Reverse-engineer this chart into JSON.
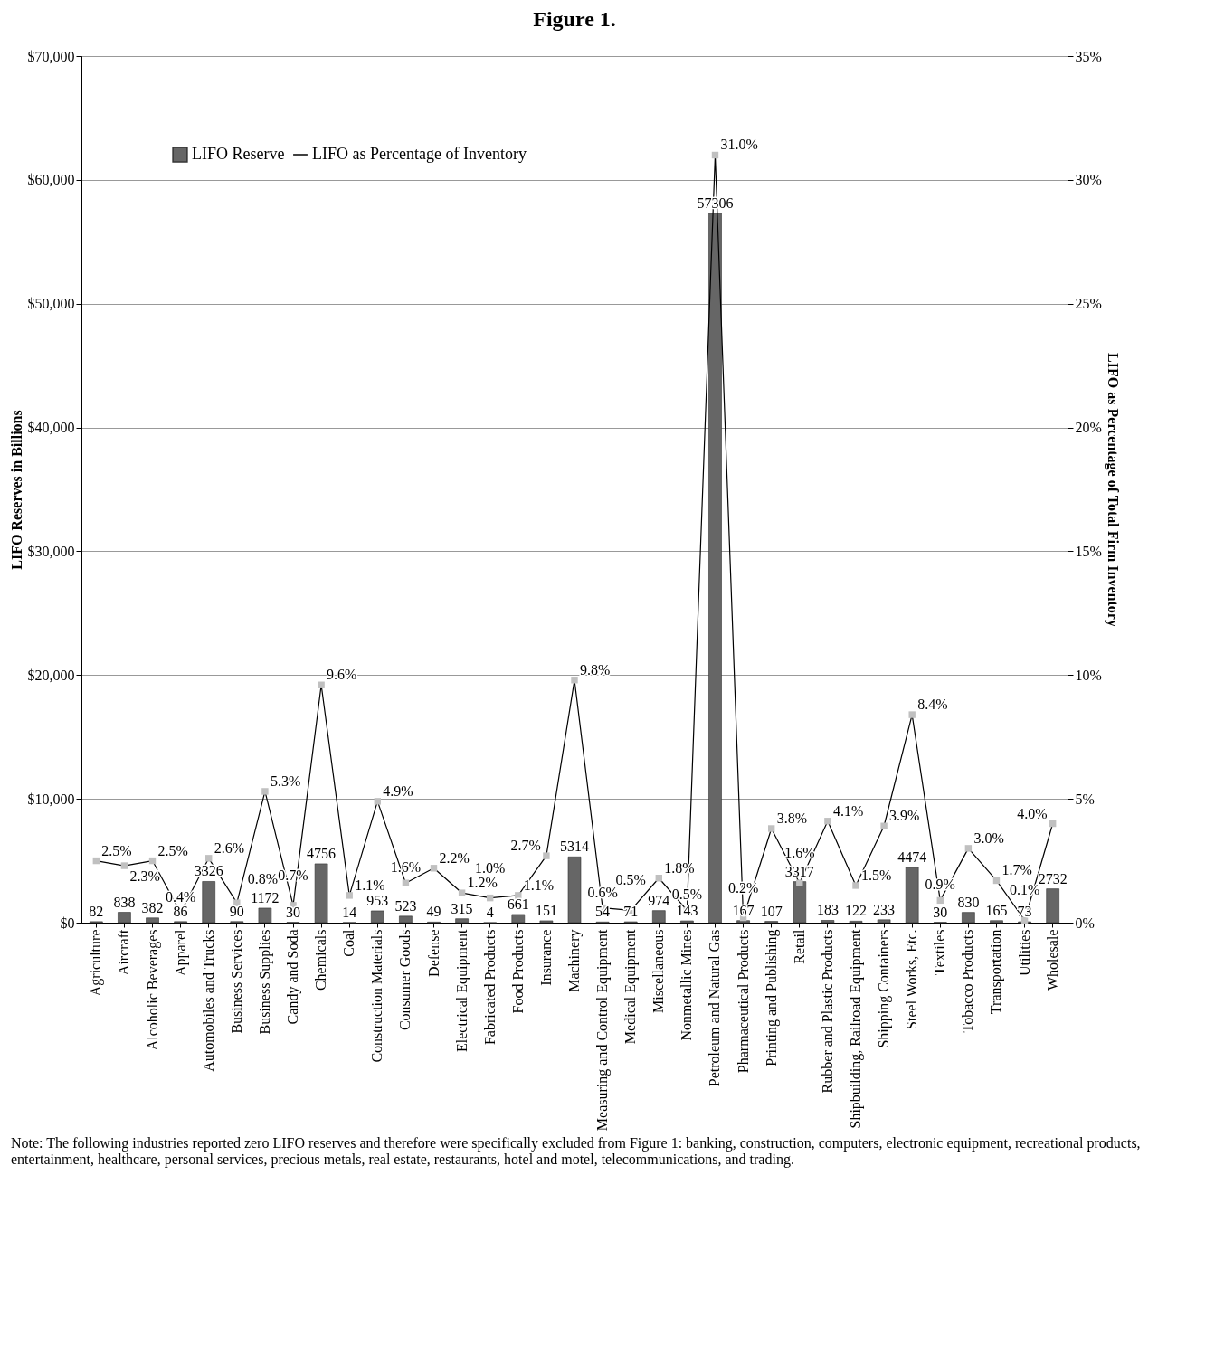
{
  "chart_data": {
    "type": "bar",
    "title": "Figure 1.",
    "ylabel": "LIFO Reserves in Billions",
    "y2label": "LIFO as Percentage of Total Firm Inventory",
    "categories": [
      "Agriculture",
      "Aircraft",
      "Alcoholic Beverages",
      "Apparel",
      "Automobiles and Trucks",
      "Business Services",
      "Business Supplies",
      "Candy and Soda",
      "Chemicals",
      "Coal",
      "Construction Materials",
      "Consumer Goods",
      "Defense",
      "Electrical Equipment",
      "Fabricated Products",
      "Food Products",
      "Insurance",
      "Machinery",
      "Measuring and Control Equipment",
      "Medical Equipment",
      "Miscellaneous",
      "Nonmetallic Mines",
      "Petroleum and Natural Gas",
      "Pharmaceutical Products",
      "Printing and Publishing",
      "Retail",
      "Rubber and Plastic Products",
      "Shipbuilding, Railroad Equipment",
      "Shipping Containers",
      "Steel Works, Etc.",
      "Textiles",
      "Tobacco Products",
      "Transportation",
      "Utilities",
      "Wholesale"
    ],
    "series": [
      {
        "name": "LIFO Reserve",
        "color": "#666666",
        "values": [
          82,
          838,
          382,
          86,
          3326,
          90,
          1172,
          30,
          4756,
          14,
          953,
          523,
          49,
          315,
          4,
          661,
          151,
          5314,
          54,
          71,
          974,
          143,
          57306,
          167,
          107,
          3317,
          183,
          122,
          233,
          4474,
          30,
          830,
          165,
          73,
          2732
        ]
      },
      {
        "name": "LIFO as Percentage of Inventory",
        "type": "line",
        "axis": "y2",
        "color": "#000000",
        "marker": "square",
        "colors": [
          "#c0c0c0",
          "#c0c0c0",
          "#c0c0c0",
          "#c0c0c0",
          "#c0c0c0",
          "#c0c0c0",
          "#c0c0c0",
          "#c0c0c0",
          "#c0c0c0",
          "#c0c0c0",
          "#c0c0c0",
          "#c0c0c0",
          "#c0c0c0",
          "#c0c0c0",
          "#c0c0c0",
          "#c0c0c0",
          "#c0c0c0",
          "#c0c0c0",
          "#c0c0c0",
          "#c0c0c0",
          "#c0c0c0",
          "#c0c0c0",
          "#c0c0c0",
          "#c0c0c0",
          "#c0c0c0",
          "#c0c0c0",
          "#c0c0c0",
          "#c0c0c0",
          "#c0c0c0",
          "#c0c0c0",
          "#c0c0c0",
          "#c0c0c0",
          "#c0c0c0",
          "#c0c0c0",
          "#c0c0c0"
        ],
        "values": [
          2.5,
          2.3,
          2.5,
          0.4,
          2.6,
          0.8,
          5.3,
          0.7,
          9.6,
          1.1,
          4.9,
          1.6,
          2.2,
          1.2,
          1.0,
          1.1,
          2.7,
          9.8,
          0.6,
          0.5,
          1.8,
          0.5,
          31.0,
          0.2,
          3.8,
          1.6,
          4.1,
          1.5,
          3.9,
          8.4,
          0.9,
          3.0,
          1.7,
          0.1,
          4.0
        ],
        "value_labels": [
          "2.5%",
          "2.3%",
          "2.5%",
          "0.4%",
          "2.6%",
          "0.8%",
          "5.3%",
          "0.7%",
          "9.6%",
          "1.1%",
          "4.9%",
          "1.6%",
          "2.2%",
          "1.2%",
          "1.0%",
          "1.1%",
          "2.7%",
          "9.8%",
          "0.6%",
          "0.5%",
          "1.8%",
          "0.5%",
          "31.0%",
          "0.2%",
          "3.8%",
          "1.6%",
          "4.1%",
          "1.5%",
          "3.9%",
          "8.4%",
          "0.9%",
          "3.0%",
          "1.7%",
          "0.1%",
          "4.0%"
        ]
      }
    ],
    "data_labels": true,
    "ylim": [
      0,
      70000
    ],
    "yticks": [
      {
        "value": 0,
        "label": "$0"
      },
      {
        "value": 10000,
        "label": "$10,000"
      },
      {
        "value": 20000,
        "label": "$20,000"
      },
      {
        "value": 30000,
        "label": "$30,000"
      },
      {
        "value": 40000,
        "label": "$40,000"
      },
      {
        "value": 50000,
        "label": "$50,000"
      },
      {
        "value": 60000,
        "label": "$60,000"
      },
      {
        "value": 70000,
        "label": "$70,000"
      }
    ],
    "y2lim": [
      0,
      35
    ],
    "y2ticks": [
      {
        "value": 0,
        "label": "0%"
      },
      {
        "value": 5,
        "label": "5%"
      },
      {
        "value": 10,
        "label": "10%"
      },
      {
        "value": 15,
        "label": "15%"
      },
      {
        "value": 20,
        "label": "20%"
      },
      {
        "value": 25,
        "label": "25%"
      },
      {
        "value": 30,
        "label": "30%"
      },
      {
        "value": 35,
        "label": "35%"
      }
    ],
    "grid": "y",
    "legend": "top left",
    "line_style": "solid",
    "annotations": [
      "Note: The following industries reported zero LIFO reserves and therefore were specifically excluded from Figure 1: banking, construction, computers, electronic equipment, recreational products, entertainment, healthcare, personal services, precious metals, real estate, restaurants, hotel and motel, telecommunications, and trading."
    ]
  }
}
